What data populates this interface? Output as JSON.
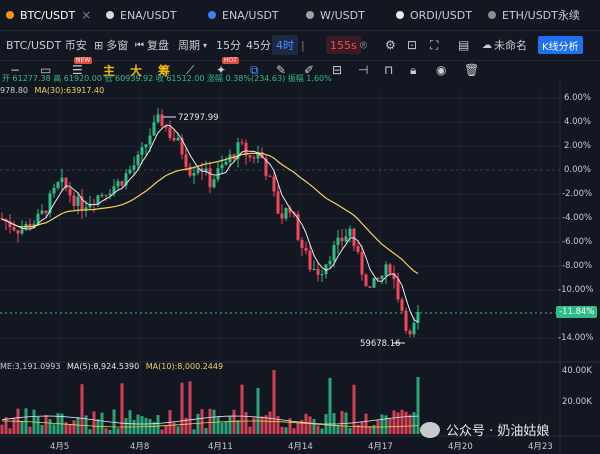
{
  "tabs": [
    {
      "label": "BTC/USDT",
      "dot": "#f7931a",
      "active": true
    },
    {
      "label": "ENA/USDT",
      "dot": "#d9d9d9",
      "active": false
    },
    {
      "label": "ENA/USDT",
      "dot": "#3b82f6",
      "active": false
    },
    {
      "label": "W/USDT",
      "dot": "#9aa0a6",
      "active": false
    },
    {
      "label": "ORDI/USDT",
      "dot": "#e8e8e8",
      "active": false
    },
    {
      "label": "ETH/USDT永续",
      "dot": "#8c8c8c",
      "active": false
    }
  ],
  "toolbar": {
    "symbol": "BTC/USDT 币安",
    "multi": "多窗",
    "restore": "复盘",
    "period": "周期",
    "intervals": [
      "15分",
      "45分",
      "4时"
    ],
    "countdown": "155s",
    "unnamed": "未命名",
    "kline": "K线分析"
  },
  "draw_bar": {
    "main": "主",
    "big": "大",
    "chip": "筹",
    "new_badge": "NEW",
    "hot_badge": "HOT"
  },
  "info": {
    "row1_left": "978.80",
    "ma30": "MA(30):63917.40",
    "ohlc": "开 61277.38  高 61920.00  低 60939.92  收 61512.00  涨幅 0.38%(234.63)  振幅 1.60%",
    "vol_label": "ME:3,191.0993",
    "vma5": "MA(5):8,924.5390",
    "vma10": "MA(10):8,000.2449"
  },
  "annotations": {
    "high": "72797.99",
    "low": "59678.16",
    "current": "-11.84%"
  },
  "price_axis": [
    "6.00%",
    "4.00%",
    "2.00%",
    "0.00%",
    "-2.00%",
    "-4.00%",
    "-6.00%",
    "-8.00%",
    "-10.00%",
    "-11.84%",
    "-14.00%"
  ],
  "vol_axis": [
    "40.00K",
    "20.00K"
  ],
  "x_labels": [
    "4月5",
    "4月8",
    "4月11",
    "4月14",
    "4月17",
    "4月20",
    "4月23"
  ],
  "watermark": "公众号 · 奶油姑娘",
  "colors": {
    "up": "#2ebd85",
    "down": "#f6465d",
    "ma30": "#f0d45a",
    "ma5": "#e8e8e8",
    "accent": "#1e6ff2"
  }
}
